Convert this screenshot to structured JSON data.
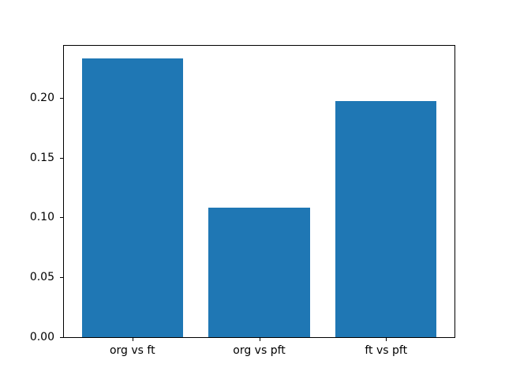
{
  "chart_data": {
    "type": "bar",
    "title": "",
    "xlabel": "",
    "ylabel": "",
    "categories": [
      "org vs ft",
      "org vs pft",
      "ft vs pft"
    ],
    "values": [
      0.233,
      0.108,
      0.197
    ],
    "ylim": [
      0,
      0.2433
    ],
    "yticks": [
      0.0,
      0.05,
      0.1,
      0.15,
      0.2
    ],
    "ytick_labels": [
      "0.00",
      "0.05",
      "0.10",
      "0.15",
      "0.20"
    ],
    "bar_color": "#1f77b4",
    "spine_color": "#000000",
    "text_color": "#000000",
    "background": "#ffffff",
    "grid": false,
    "legend": null,
    "bar_width_fraction": 0.8
  }
}
